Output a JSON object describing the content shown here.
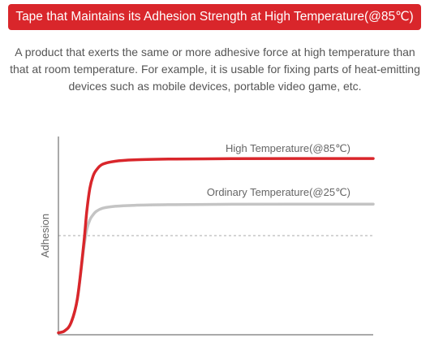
{
  "banner": {
    "title": "Tape that Maintains its Adhesion Strength at High Temperature(@85℃)"
  },
  "description": "A product that exerts the same or more adhesive force at high temperature than that at room temperature. For example, it is usable for fixing parts of heat-emitting devices such as mobile devices, portable video game, etc.",
  "colors": {
    "accent": "#d9262b",
    "high_series": "#d9262b",
    "ordinary_series": "#c4c4c4",
    "axis": "#555555",
    "reference_line": "#aaaaaa",
    "text": "#666666"
  },
  "chart_data": {
    "type": "line",
    "title": "",
    "xlabel": "",
    "ylabel": "Adhesion",
    "ylim": [
      0,
      100
    ],
    "grid": false,
    "legend": "labels placed above each line",
    "reference_line_y": 50,
    "series": [
      {
        "name": "High Temperature(@85℃)",
        "x": [
          0,
          2,
          4,
          6,
          8,
          9,
          10,
          11,
          12,
          14,
          18,
          24,
          35,
          55,
          100
        ],
        "values": [
          1,
          2,
          6,
          18,
          45,
          62,
          74,
          80,
          83,
          86,
          87.5,
          88.2,
          88.6,
          88.8,
          88.9
        ]
      },
      {
        "name": "Ordinary Temperature(@25℃)",
        "x": [
          0,
          2,
          4,
          6,
          8,
          9,
          10,
          11,
          12,
          14,
          18,
          24,
          35,
          55,
          100
        ],
        "values": [
          1,
          2,
          6,
          18,
          43,
          53,
          58,
          60.5,
          62.2,
          63.8,
          64.8,
          65.3,
          65.6,
          65.8,
          65.9
        ]
      }
    ]
  }
}
